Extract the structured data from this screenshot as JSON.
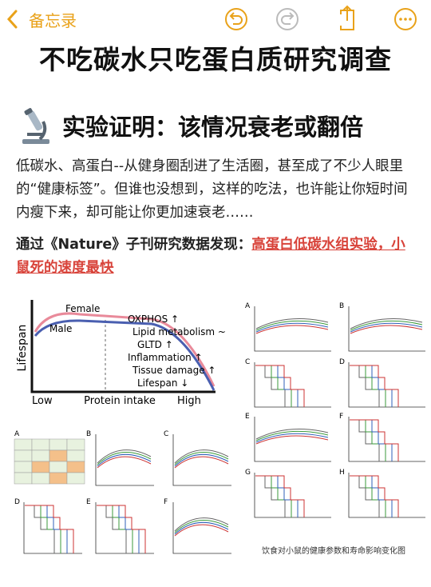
{
  "nav": {
    "back": "备忘录"
  },
  "title": "不吃碳水只吃蛋白质研究调查",
  "heading": "实验证明：该情况衰老或翻倍",
  "paragraph": "低碳水、高蛋白--从健身圈刮进了生活圈，甚至成了不少人眼里的“健康标签”。但谁也没想到，这样的吃法，也许能让你短时间内瘦下来，却可能让你更加速衰老……",
  "finding": {
    "lead": "通过《Nature》子刊研究数据发现：",
    "highlight": "高蛋白低碳水组实验，小鼠死的速度最快"
  },
  "figure": {
    "concept": {
      "y_label": "Lifespan",
      "x_label": "Protein intake",
      "x_low": "Low",
      "x_high": "High",
      "female": "Female",
      "male": "Male",
      "effects": [
        "OXPHOS ↑",
        "Lipid metabolism ~",
        "GLTD ↑",
        "Inflammation ↑",
        "Tissue damage ↑",
        "Lifespan ↓"
      ]
    },
    "panels_right": [
      "A",
      "B",
      "C",
      "D",
      "E",
      "F",
      "G",
      "H"
    ],
    "panels_left": [
      "A",
      "B",
      "C",
      "D",
      "E",
      "F"
    ],
    "caption": "饮食对小鼠的健康参数和寿命影响变化图"
  }
}
